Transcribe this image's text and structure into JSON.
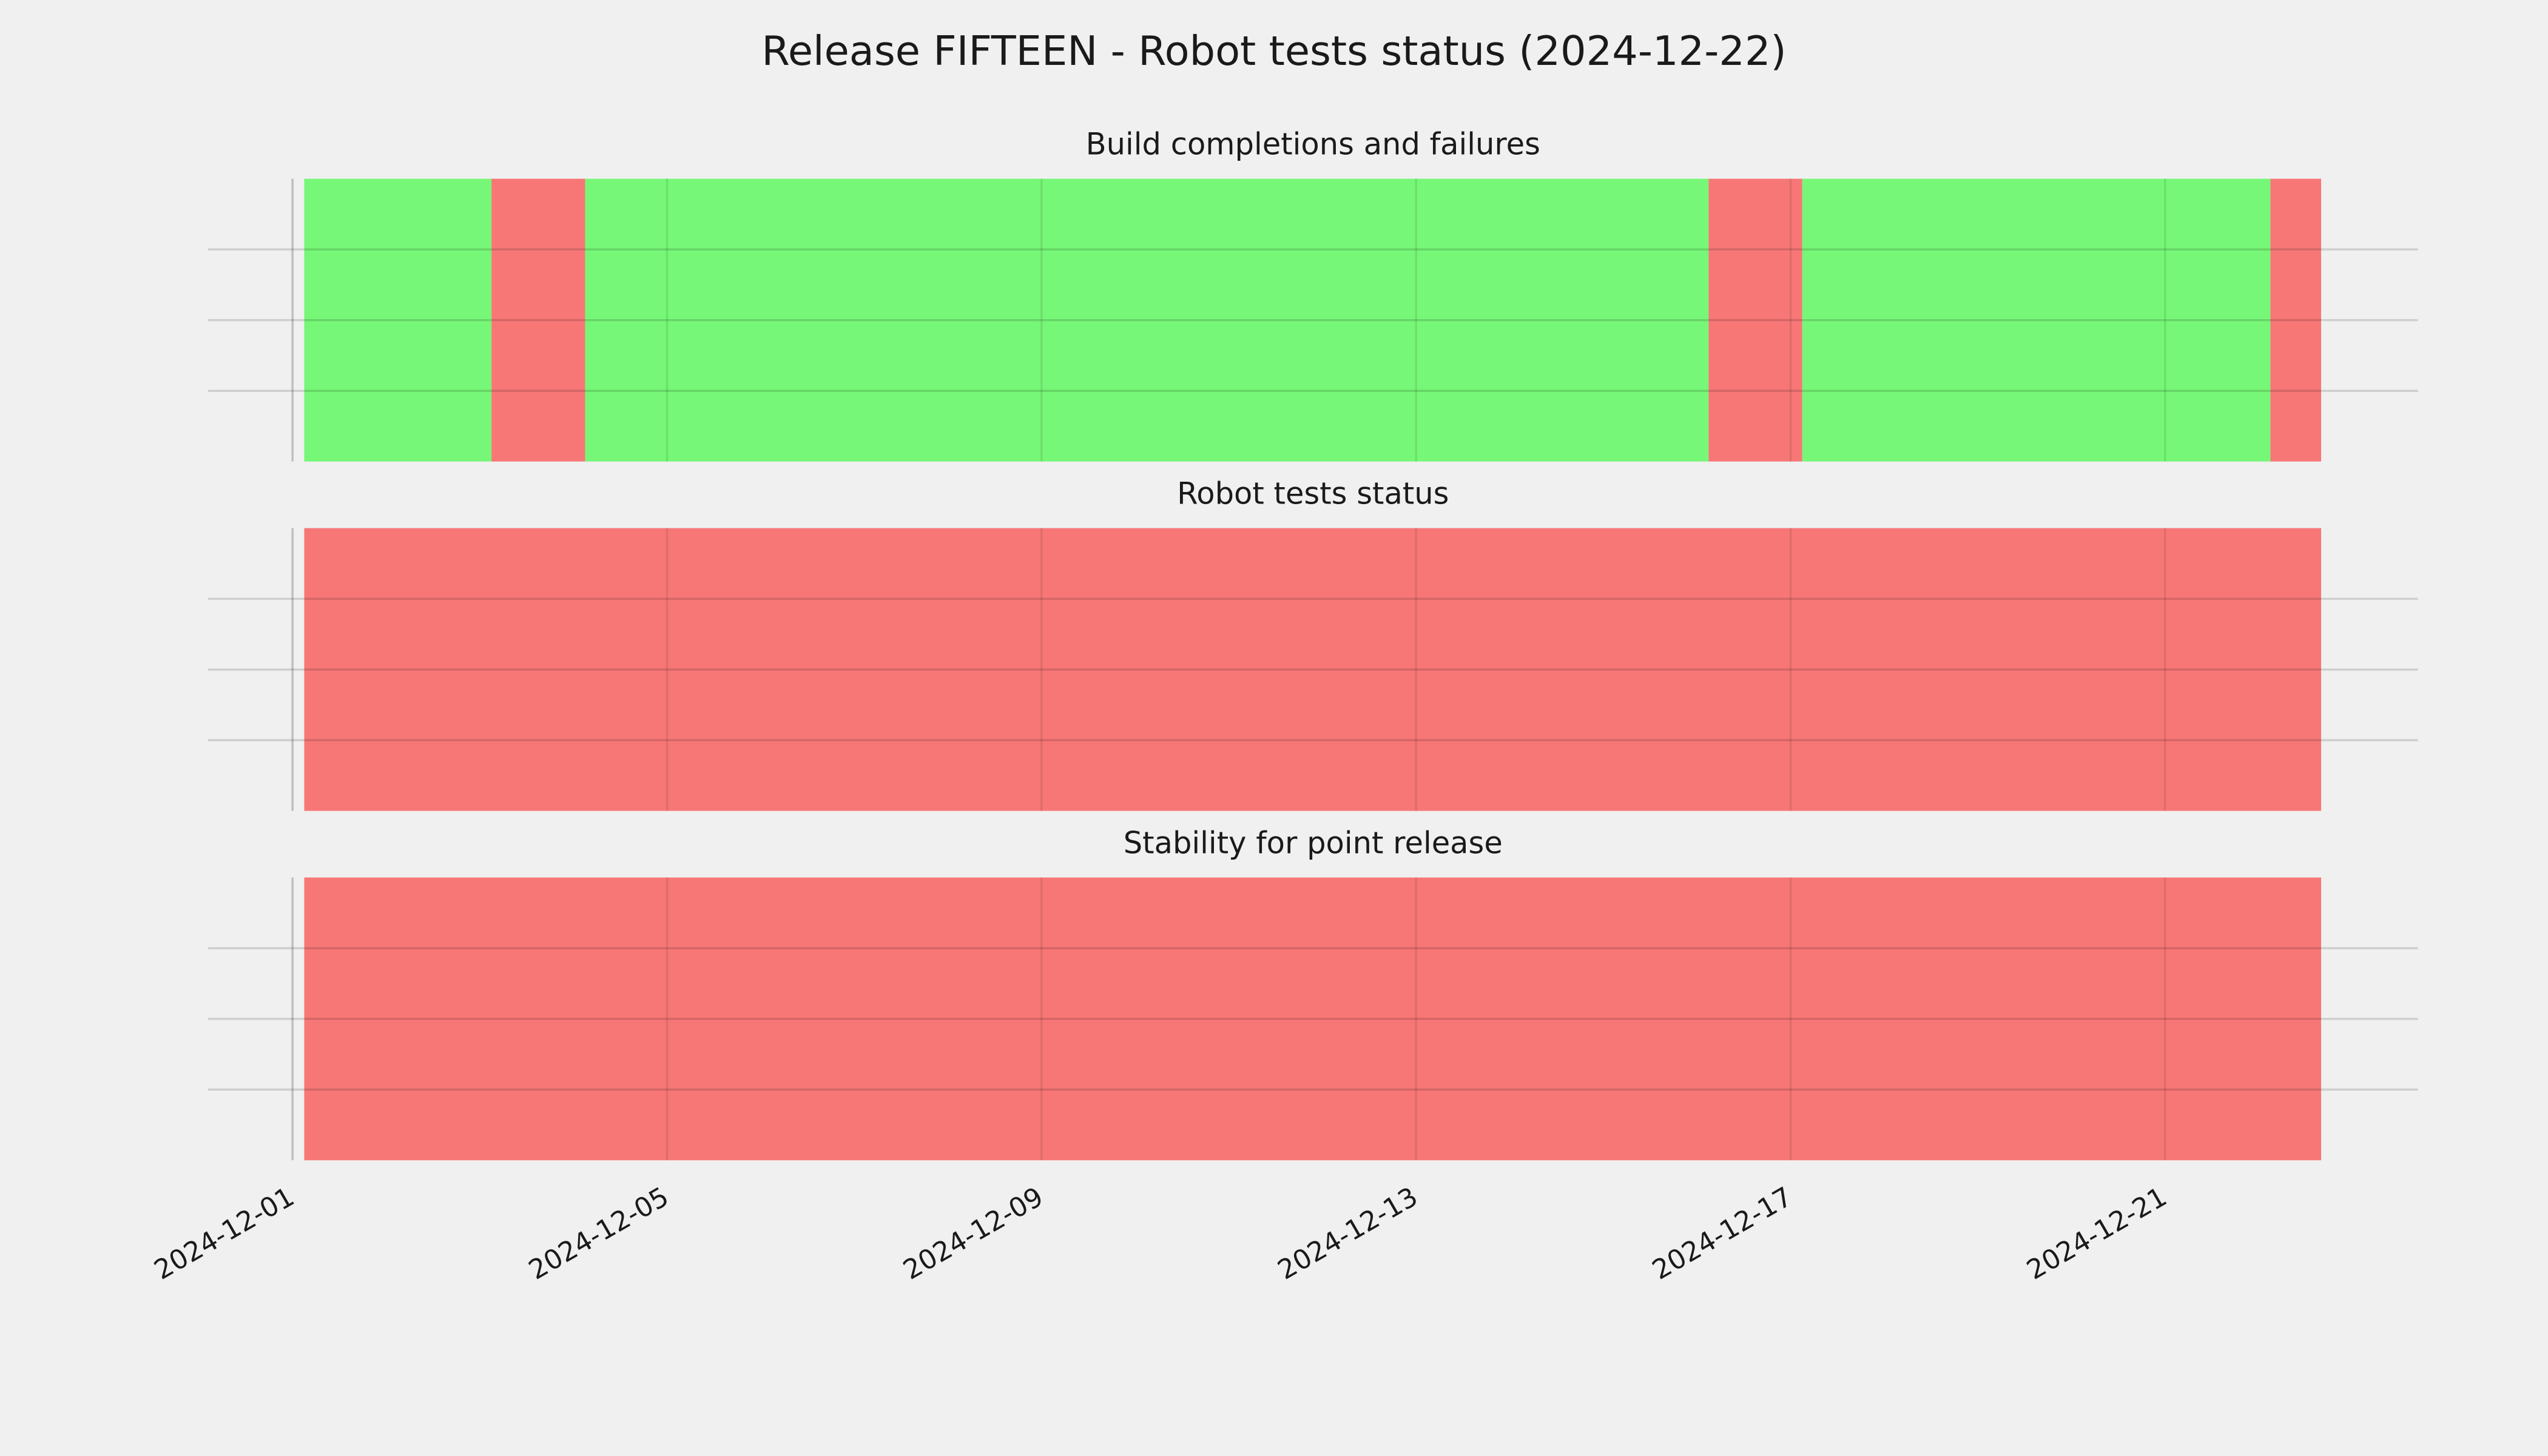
{
  "title": "Release FIFTEEN - Robot tests status (2024-12-22)",
  "xlim": [
    "2024-11-30T02:20",
    "2024-12-23T16:50"
  ],
  "xticks": [
    "2024-12-01",
    "2024-12-05",
    "2024-12-09",
    "2024-12-13",
    "2024-12-17",
    "2024-12-21"
  ],
  "grid": true,
  "chart_data": [
    {
      "type": "timeline",
      "title": "Build completions and failures",
      "segments": [
        {
          "start": "2024-12-01T03:00",
          "end": "2024-12-03T03:00",
          "color": "#77f777"
        },
        {
          "start": "2024-12-03T03:00",
          "end": "2024-12-04T03:00",
          "color": "#f77777"
        },
        {
          "start": "2024-12-04T03:00",
          "end": "2024-12-16T03:00",
          "color": "#77f777"
        },
        {
          "start": "2024-12-16T03:00",
          "end": "2024-12-17T03:00",
          "color": "#f77777"
        },
        {
          "start": "2024-12-17T03:00",
          "end": "2024-12-22T03:00",
          "color": "#77f777"
        },
        {
          "start": "2024-12-22T03:00",
          "end": "2024-12-22T16:00",
          "color": "#f77777"
        }
      ]
    },
    {
      "type": "timeline",
      "title": "Robot tests status",
      "segments": [
        {
          "start": "2024-12-01T03:00",
          "end": "2024-12-22T16:00",
          "color": "#f77777"
        }
      ]
    },
    {
      "type": "timeline",
      "title": "Stability for point release",
      "segments": [
        {
          "start": "2024-12-01T03:00",
          "end": "2024-12-22T16:00",
          "color": "#f77777"
        }
      ]
    }
  ]
}
